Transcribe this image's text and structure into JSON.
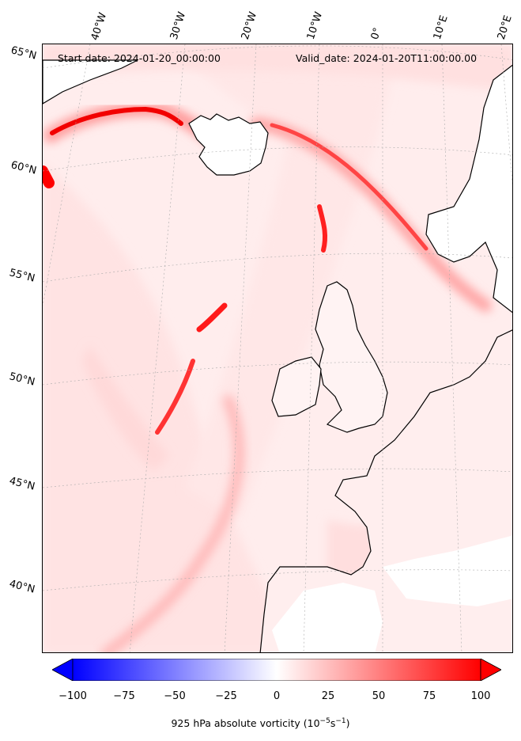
{
  "header": {
    "start_date": "Start date: 2024-01-20_00:00:00",
    "valid_date": "Valid_date: 2024-01-20T11:00:00.00"
  },
  "lon_labels": [
    "40°W",
    "30°W",
    "20°W",
    "10°W",
    "0°",
    "10°E",
    "20°E"
  ],
  "lat_labels": [
    "65°N",
    "60°N",
    "55°N",
    "50°N",
    "45°N",
    "40°N"
  ],
  "colorbar": {
    "ticks": [
      "−100",
      "−75",
      "−50",
      "−25",
      "0",
      "25",
      "50",
      "75",
      "100"
    ],
    "label_main": "925 hPa absolute vorticity (10",
    "label_exp1": "−5",
    "label_mid": "s",
    "label_exp2": "−1",
    "label_end": ")",
    "min_color": "#0000ff",
    "mid_color": "#ffffff",
    "max_color": "#ff0000",
    "range": [
      -100,
      100
    ]
  },
  "colors": {
    "land_outline": "#000000",
    "background_field": "#fff0f0",
    "gridline": "#bbbbbb"
  }
}
